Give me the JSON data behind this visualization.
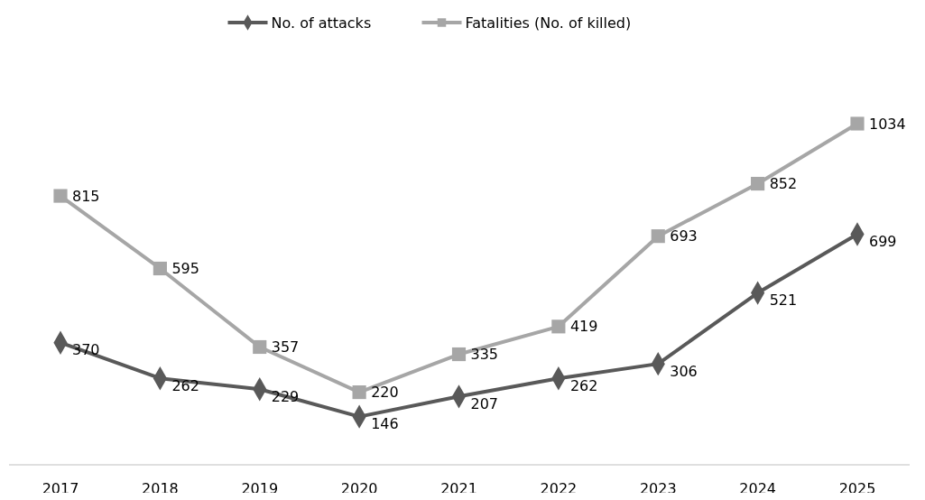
{
  "chart_data": {
    "type": "line",
    "categories": [
      "2017",
      "2018",
      "2019",
      "2020",
      "2021",
      "2022",
      "2023",
      "2024",
      "2025"
    ],
    "series": [
      {
        "name": "No. of attacks",
        "color": "#595959",
        "marker": "diamond",
        "values": [
          370,
          262,
          229,
          146,
          207,
          262,
          306,
          521,
          699
        ]
      },
      {
        "name": "Fatalities (No. of killed)",
        "color": "#a6a6a6",
        "marker": "square",
        "values": [
          815,
          595,
          357,
          220,
          335,
          419,
          693,
          852,
          1034
        ]
      }
    ],
    "data_labels": true,
    "legend": "top",
    "grid": false,
    "tick_labels": "x",
    "line_style": "solid"
  }
}
